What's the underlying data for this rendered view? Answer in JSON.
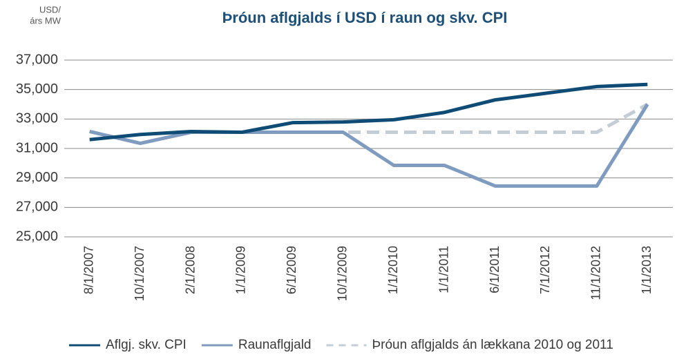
{
  "chart_data": {
    "type": "line",
    "title": "Þróun aflgjalds í USD í raun og skv. CPI",
    "y_label": [
      "USD/",
      "árs MW"
    ],
    "categories": [
      "8/1/2007",
      "10/1/2007",
      "2/1/2008",
      "1/1/2009",
      "6/1/2009",
      "10/1/2009",
      "1/1/2010",
      "1/1/2011",
      "6/1/2011",
      "7/1/2012",
      "11/1/2012",
      "1/1/2013"
    ],
    "series": [
      {
        "name": "Aflgj. skv. CPI",
        "color": "#0f4c75",
        "dash": false,
        "values": [
          31600,
          31950,
          32150,
          32100,
          32750,
          32800,
          32950,
          33450,
          34300,
          34750,
          35200,
          35350
        ]
      },
      {
        "name": "Raunaflgjald",
        "color": "#7f9bbf",
        "dash": false,
        "values": [
          32150,
          31350,
          32100,
          32100,
          32100,
          32100,
          29850,
          29850,
          28450,
          28450,
          28450,
          34000
        ]
      },
      {
        "name": "Þróun aflgjalds án lækkana 2010 og 2011",
        "color": "#c4ccd6",
        "dash": true,
        "values": [
          32150,
          31350,
          32100,
          32100,
          32100,
          32100,
          32100,
          32100,
          32100,
          32100,
          32100,
          34000
        ]
      }
    ],
    "ylim": [
      25000,
      37000
    ],
    "yticks": [
      {
        "value": 25000,
        "label": "25,000"
      },
      {
        "value": 27000,
        "label": "27,000"
      },
      {
        "value": 29000,
        "label": "29,000"
      },
      {
        "value": 31000,
        "label": "31,000"
      },
      {
        "value": 33000,
        "label": "33,000"
      },
      {
        "value": 35000,
        "label": "35,000"
      },
      {
        "value": 37000,
        "label": "37,000"
      }
    ],
    "grid": true,
    "legend": "bottom"
  }
}
